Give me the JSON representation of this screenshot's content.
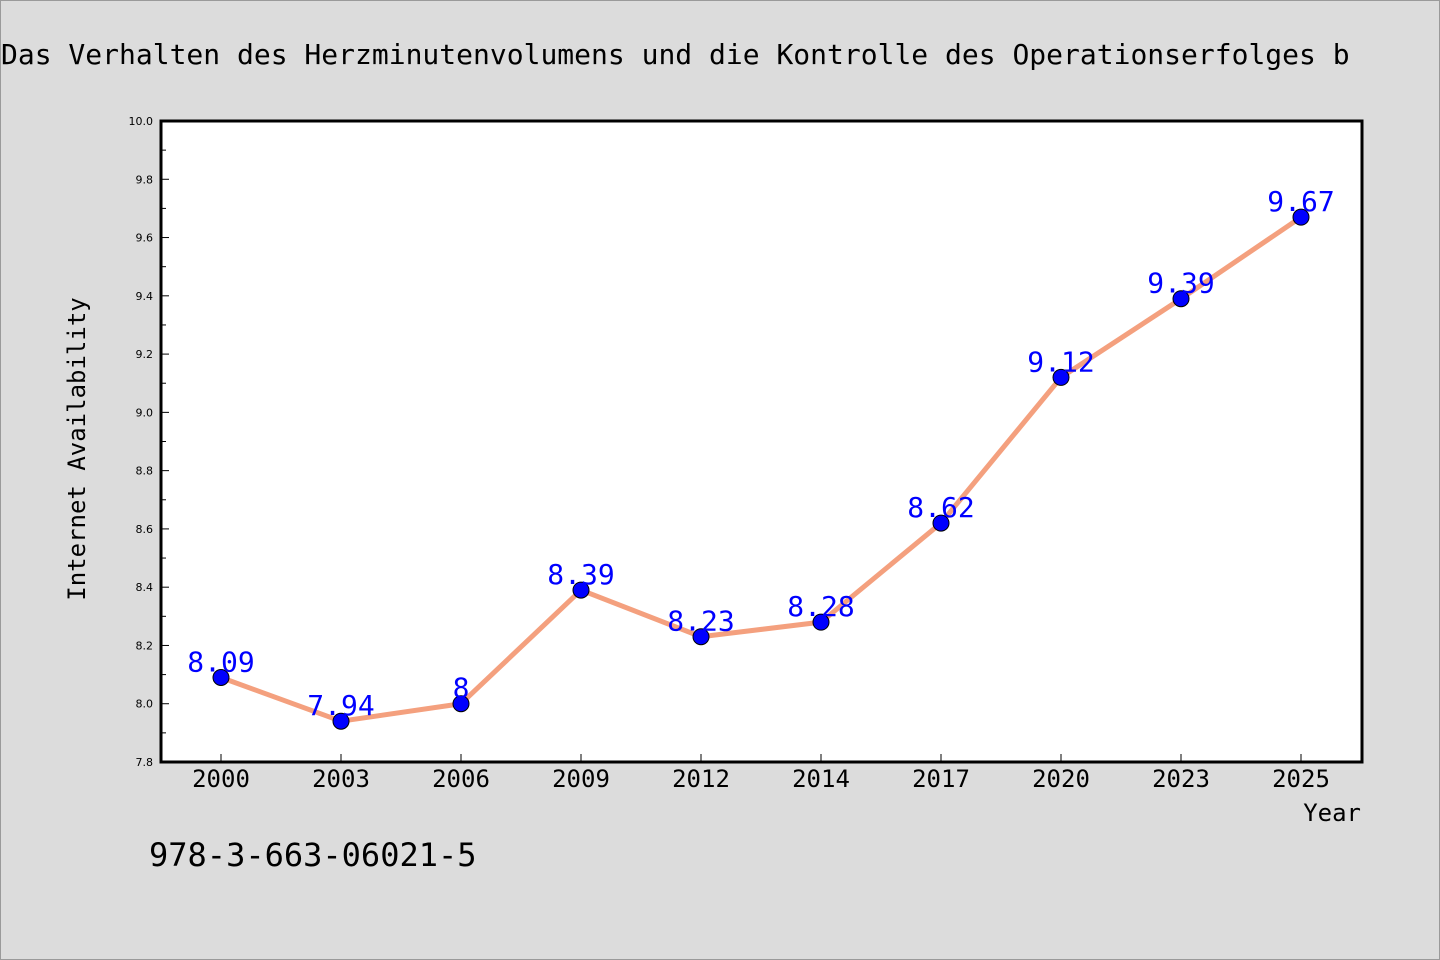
{
  "chart_data": {
    "type": "line",
    "title": "Das Verhalten des Herzminutenvolumens und die Kontrolle des Operationserfolges b",
    "xlabel": "Year",
    "ylabel": "Internet Availability",
    "categories": [
      "2000",
      "2003",
      "2006",
      "2009",
      "2012",
      "2014",
      "2017",
      "2020",
      "2023",
      "2025"
    ],
    "series": [
      {
        "values": [
          8.09,
          7.94,
          8,
          8.39,
          8.23,
          8.28,
          8.62,
          9.12,
          9.39,
          9.67
        ],
        "data_labels": [
          "8.09",
          "7.94",
          "8",
          "8.39",
          "8.23",
          "8.28",
          "8.62",
          "9.12",
          "9.39",
          "9.67"
        ],
        "line_color": "#f4a07e",
        "marker_color": "#0000ff",
        "label_color": "#0000ff"
      }
    ],
    "yticks": [
      "7.8",
      "8.0",
      "8.2",
      "8.4",
      "8.6",
      "8.8",
      "9.0",
      "9.2",
      "9.4",
      "9.6",
      "9.8",
      "10.0"
    ],
    "ylim": [
      7.8,
      10.0
    ],
    "grid": false,
    "legend": "none"
  },
  "annotation": "978-3-663-06021-5",
  "colors": {
    "background": "#dcdcdc",
    "plot_background": "#ffffff",
    "axis": "#000000",
    "text": "#000000"
  }
}
